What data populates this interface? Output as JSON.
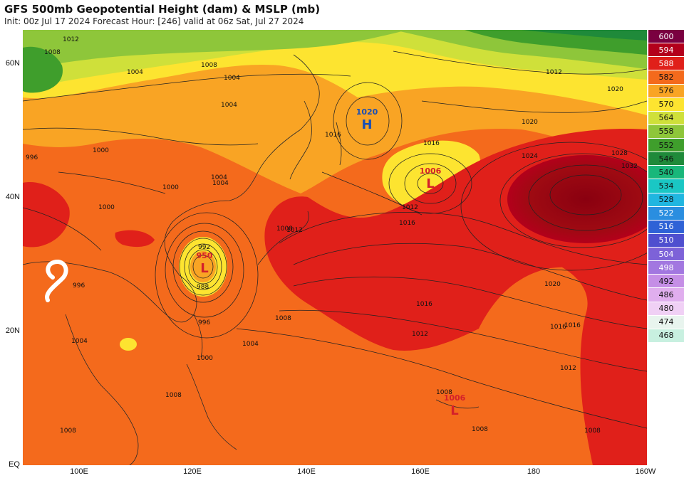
{
  "header": {
    "title": "GFS 500mb Geopotential Height (dam) & MSLP (mb)",
    "subtitle": "Init: 00z Jul 17 2024   Forecast Hour: [246]   valid at 06z Sat, Jul 27 2024"
  },
  "axes": {
    "lat_labels": [
      "60N",
      "40N",
      "20N",
      "EQ"
    ],
    "lon_labels": [
      "100E",
      "120E",
      "140E",
      "160E",
      "180",
      "160W"
    ]
  },
  "legend": {
    "levels": [
      "600",
      "594",
      "588",
      "582",
      "576",
      "570",
      "564",
      "558",
      "552",
      "546",
      "540",
      "534",
      "528",
      "522",
      "516",
      "510",
      "504",
      "498",
      "492",
      "486",
      "480",
      "474",
      "468"
    ],
    "colors": [
      "#7a0040",
      "#b3001b",
      "#e0201a",
      "#f46a1c",
      "#f9a424",
      "#fde430",
      "#cfe03a",
      "#8ec63a",
      "#3f9e2c",
      "#1f8a3a",
      "#19b77a",
      "#1ac7c4",
      "#20b6e0",
      "#2a8ee0",
      "#2f62d6",
      "#4f4fcf",
      "#7d62d8",
      "#a277e0",
      "#c58ee6",
      "#e0aeee",
      "#f0d0f5",
      "#e8f4ee",
      "#c8f0e0"
    ]
  },
  "pressure_centers": [
    {
      "type": "H",
      "value": "1020",
      "color": "#1a4fb5"
    },
    {
      "type": "L",
      "value": "1006",
      "color": "#d4202a"
    },
    {
      "type": "L",
      "value": "950",
      "color": "#d4202a"
    },
    {
      "type": "L",
      "value": "1006",
      "color": "#d4202a"
    }
  ],
  "isobar_labels": [
    "1012",
    "1008",
    "1004",
    "1004",
    "1008",
    "1004",
    "1000",
    "1000",
    "996",
    "1016",
    "1016",
    "1012",
    "1016",
    "1020",
    "1024",
    "1028",
    "1032",
    "1020",
    "1016",
    "1012",
    "1012",
    "1016",
    "1012",
    "1008",
    "1004",
    "1000",
    "996",
    "992",
    "988",
    "1008",
    "1004",
    "1008",
    "1004",
    "1008",
    "1008",
    "1008",
    "996",
    "1000",
    "1004",
    "1008",
    "1012",
    "1016",
    "1020"
  ]
}
